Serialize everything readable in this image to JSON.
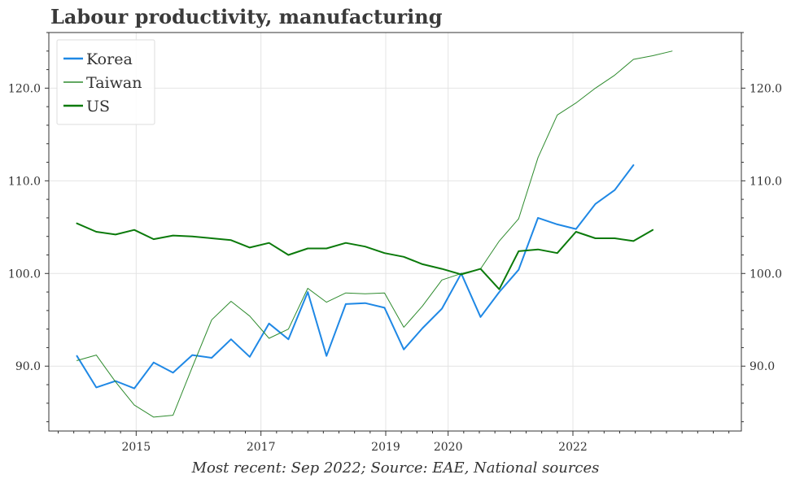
{
  "chart_data": {
    "type": "line",
    "title": "Labour productivity, manufacturing",
    "xlabel": "",
    "ylabel": "",
    "ylim": [
      83.0,
      126.0
    ],
    "y_ticks": [
      90.0,
      100.0,
      110.0,
      120.0
    ],
    "y_tick_labels": [
      "90.0",
      "100.0",
      "110.0",
      "120.0"
    ],
    "x_ticks": [
      2015,
      2017,
      2019,
      2020,
      2022
    ],
    "x_tick_labels": [
      "2015",
      "2017",
      "2019",
      "2020",
      "2022"
    ],
    "x_unit": "year",
    "xlim": [
      2013.6,
      2024.7
    ],
    "grid": true,
    "legend_position": "top-left",
    "footnote": "Most recent: Sep 2022; Source: EAE, National sources",
    "series": [
      {
        "name": "Korea",
        "color": "#1f88e5",
        "stroke_width": 2,
        "points": [
          [
            2014.05,
            91.1
          ],
          [
            2014.36,
            87.7
          ],
          [
            2014.67,
            88.4
          ],
          [
            2014.97,
            87.6
          ],
          [
            2015.28,
            90.4
          ],
          [
            2015.59,
            89.3
          ],
          [
            2015.9,
            91.2
          ],
          [
            2016.21,
            90.9
          ],
          [
            2016.52,
            92.9
          ],
          [
            2016.82,
            91.0
          ],
          [
            2017.13,
            94.6
          ],
          [
            2017.44,
            92.9
          ],
          [
            2017.75,
            98.0
          ],
          [
            2018.05,
            91.1
          ],
          [
            2018.36,
            96.7
          ],
          [
            2018.67,
            96.8
          ],
          [
            2018.98,
            96.3
          ],
          [
            2019.29,
            91.8
          ],
          [
            2019.59,
            94.1
          ],
          [
            2019.9,
            96.2
          ],
          [
            2020.21,
            100.0
          ],
          [
            2020.52,
            95.3
          ],
          [
            2020.82,
            98.0
          ],
          [
            2021.13,
            100.4
          ],
          [
            2021.44,
            106.0
          ],
          [
            2021.75,
            105.3
          ],
          [
            2022.05,
            104.8
          ],
          [
            2022.36,
            107.5
          ],
          [
            2022.67,
            109.0
          ],
          [
            2022.97,
            111.7
          ]
        ]
      },
      {
        "name": "Taiwan",
        "color": "#2e8b2e",
        "stroke_width": 1,
        "points": [
          [
            2014.05,
            90.6
          ],
          [
            2014.36,
            91.2
          ],
          [
            2014.67,
            88.3
          ],
          [
            2014.97,
            85.8
          ],
          [
            2015.28,
            84.5
          ],
          [
            2015.59,
            84.7
          ],
          [
            2015.9,
            89.9
          ],
          [
            2016.21,
            95.0
          ],
          [
            2016.52,
            97.0
          ],
          [
            2016.82,
            95.4
          ],
          [
            2017.13,
            93.0
          ],
          [
            2017.44,
            94.0
          ],
          [
            2017.75,
            98.4
          ],
          [
            2018.05,
            96.9
          ],
          [
            2018.36,
            97.9
          ],
          [
            2018.67,
            97.8
          ],
          [
            2018.98,
            97.9
          ],
          [
            2019.29,
            94.2
          ],
          [
            2019.59,
            96.5
          ],
          [
            2019.9,
            99.3
          ],
          [
            2020.21,
            100.0
          ],
          [
            2020.52,
            100.5
          ],
          [
            2020.82,
            103.5
          ],
          [
            2021.13,
            105.9
          ],
          [
            2021.44,
            112.5
          ],
          [
            2021.75,
            117.1
          ],
          [
            2022.05,
            118.4
          ],
          [
            2022.36,
            120.0
          ],
          [
            2022.67,
            121.4
          ],
          [
            2022.97,
            123.1
          ],
          [
            2023.28,
            123.5
          ],
          [
            2023.59,
            124.0
          ]
        ]
      },
      {
        "name": "US",
        "color": "#0b7a0b",
        "stroke_width": 2,
        "points": [
          [
            2014.05,
            105.4
          ],
          [
            2014.36,
            104.5
          ],
          [
            2014.67,
            104.2
          ],
          [
            2014.97,
            104.7
          ],
          [
            2015.28,
            103.7
          ],
          [
            2015.59,
            104.1
          ],
          [
            2015.9,
            104.0
          ],
          [
            2016.21,
            103.8
          ],
          [
            2016.52,
            103.6
          ],
          [
            2016.82,
            102.8
          ],
          [
            2017.13,
            103.3
          ],
          [
            2017.44,
            102.0
          ],
          [
            2017.75,
            102.7
          ],
          [
            2018.05,
            102.7
          ],
          [
            2018.36,
            103.3
          ],
          [
            2018.67,
            102.9
          ],
          [
            2018.98,
            102.2
          ],
          [
            2019.29,
            101.8
          ],
          [
            2019.59,
            101.0
          ],
          [
            2019.9,
            100.5
          ],
          [
            2020.21,
            99.9
          ],
          [
            2020.52,
            100.5
          ],
          [
            2020.82,
            98.3
          ],
          [
            2021.13,
            102.4
          ],
          [
            2021.44,
            102.6
          ],
          [
            2021.75,
            102.2
          ],
          [
            2022.05,
            104.5
          ],
          [
            2022.36,
            103.8
          ],
          [
            2022.67,
            103.8
          ],
          [
            2022.97,
            103.5
          ],
          [
            2023.28,
            104.7
          ]
        ]
      }
    ]
  }
}
